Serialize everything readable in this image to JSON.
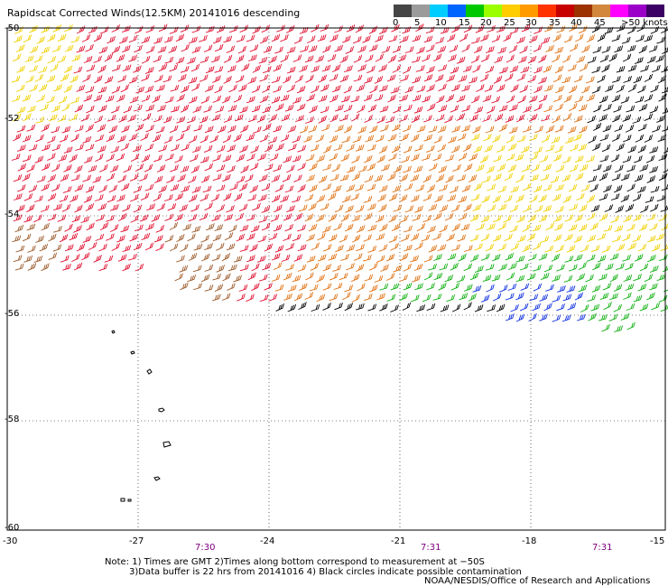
{
  "title": "Rapidscat Corrected Winds(12.5KM) 20141016 descending",
  "legend": {
    "colors": [
      "#454545",
      "#9b9b9b",
      "#00cdff",
      "#0064ff",
      "#00c800",
      "#9bff00",
      "#ffcd00",
      "#ff9b00",
      "#ff3200",
      "#c80000",
      "#9b3200",
      "#d2873c",
      "#ff00ff",
      "#9b00c8",
      "#3c0064"
    ],
    "labels": [
      "0",
      "5",
      "10",
      "15",
      "20",
      "25",
      "30",
      "35",
      "40",
      "45",
      ">50 knots"
    ]
  },
  "axes": {
    "lon_labels": [
      "-30",
      "-27",
      "-24",
      "-21",
      "-18",
      "-15"
    ],
    "lat_labels": [
      "-50",
      "-52",
      "-54",
      "-56",
      "-58",
      "-60"
    ]
  },
  "times": [
    "7:30",
    "7:31",
    "7:31"
  ],
  "notes": {
    "line1": "Note: 1) Times are GMT 2)Times along bottom correspond to measurement at −50S",
    "line2": "3)Data buffer is 22 hrs from 20141016 4) Black circles indicate possible contamination"
  },
  "credit": "NOAA/NESDIS/Office of Research and Applications",
  "icons": [
    "wind-barb-icon",
    "island-outline-icon"
  ],
  "wind_colors": {
    "red": "#e01030",
    "orange": "#e07010",
    "brown": "#9b5a2a",
    "yellow": "#f0d000",
    "green": "#10b010",
    "blue": "#1030e0",
    "black": "#000000",
    "magenta": "#d000d0"
  }
}
